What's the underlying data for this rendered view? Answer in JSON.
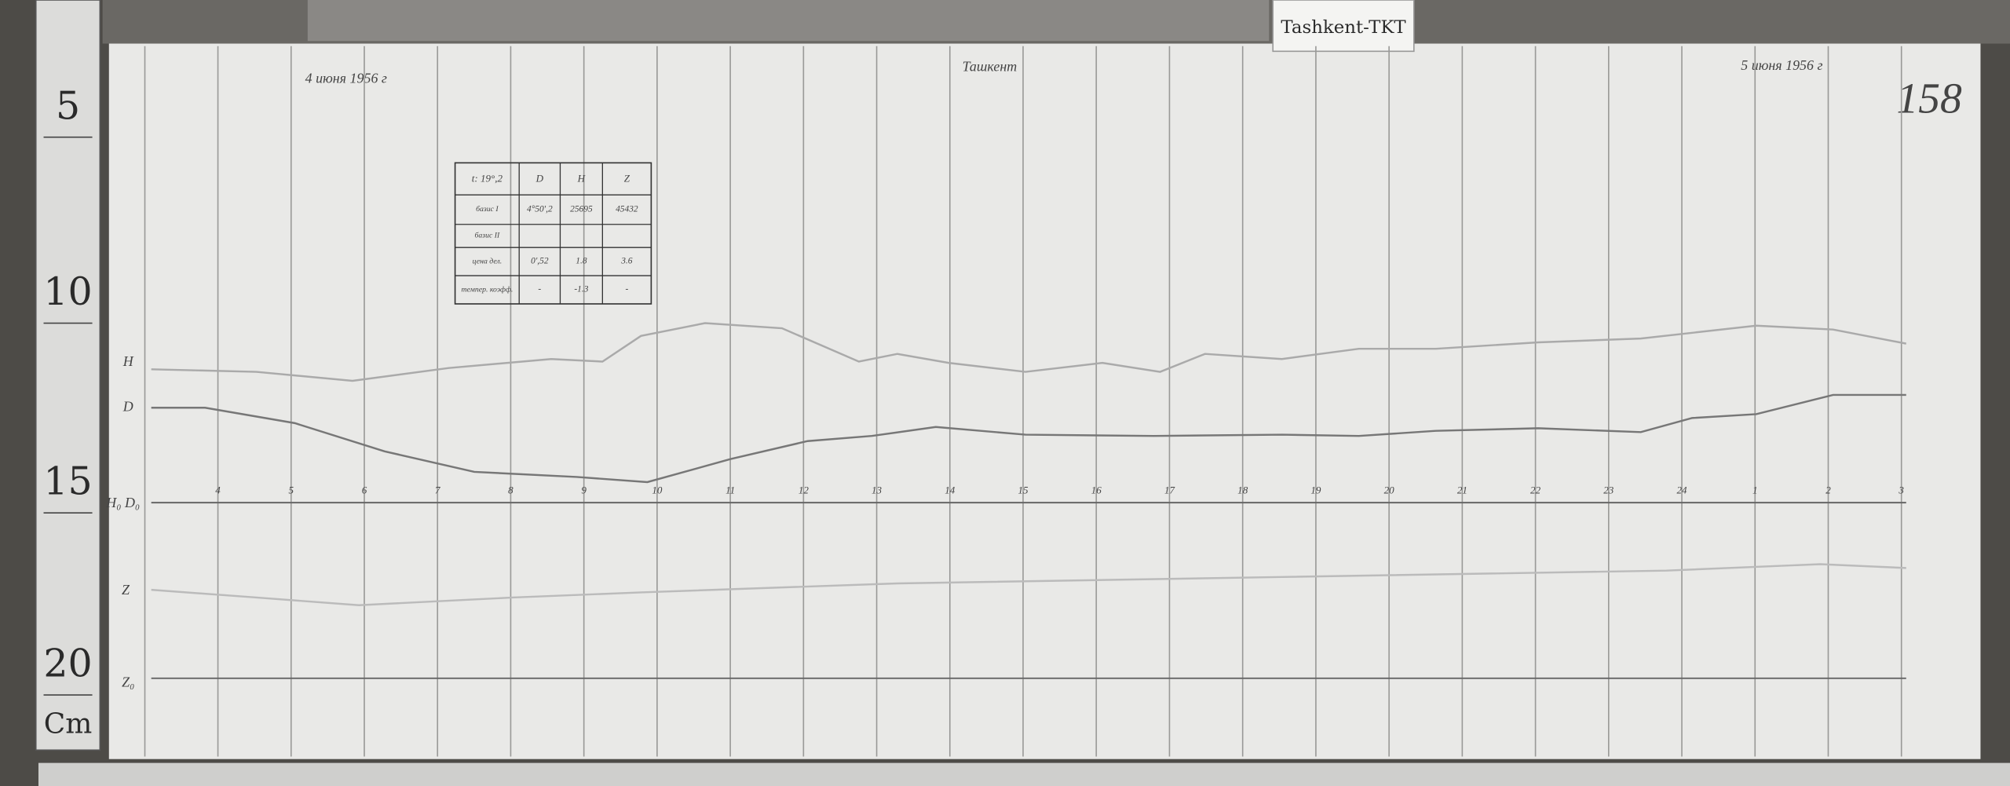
{
  "tag": "Tashkent-TKT",
  "page_number": "158",
  "date_start": "4 июня 1956 г",
  "date_end": "5 июня 1956 г",
  "station": "Ташкент",
  "ruler": {
    "marks": [
      "5",
      "10",
      "15",
      "20"
    ],
    "unit": "Cm"
  },
  "trace_labels": {
    "h": "H",
    "d": "D",
    "baseline_hd": "H₀ D₀",
    "z": "Z",
    "baseline_z": "Z₀"
  },
  "hours": [
    "4",
    "5",
    "6",
    "7",
    "8",
    "9",
    "10",
    "11",
    "12",
    "13",
    "14",
    "15",
    "16",
    "17",
    "18",
    "19",
    "20",
    "21",
    "22",
    "23",
    "24",
    "1",
    "2",
    "3"
  ],
  "table": {
    "header": [
      "t: 19°,2",
      "D",
      "H",
      "Z"
    ],
    "rows": [
      [
        "базис I",
        "4°50',2",
        "25695",
        "45432"
      ],
      [
        "базис II"
      ],
      [
        "цена дел.",
        "0',52",
        "1.8",
        "3.6"
      ],
      [
        "темпер. коэфф.",
        "-",
        "-1.3",
        "-"
      ]
    ]
  }
}
